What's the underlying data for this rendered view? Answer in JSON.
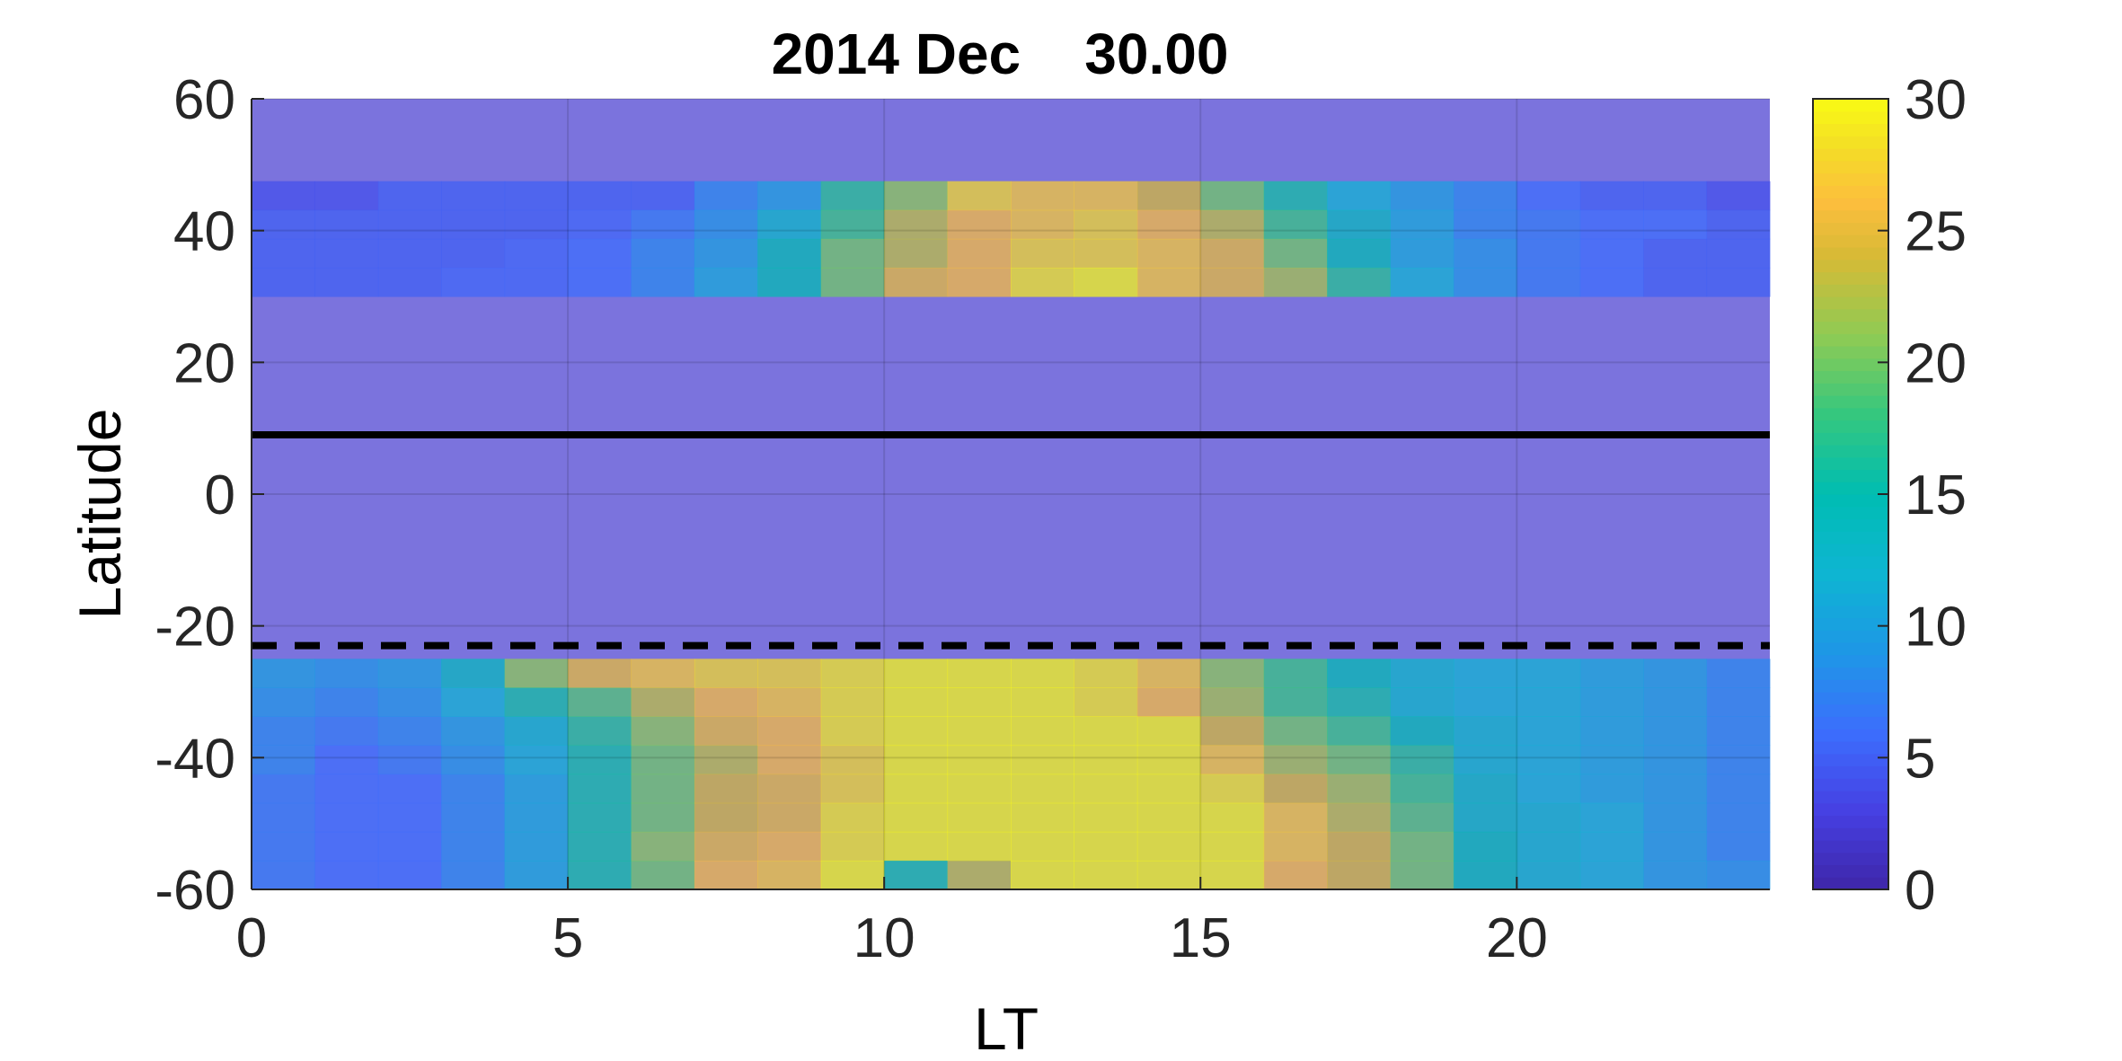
{
  "chart_data": {
    "type": "heatmap",
    "title": "2014 Dec    30.00",
    "xlabel": "LT",
    "ylabel": "Latitude",
    "xlim": [
      0,
      24
    ],
    "ylim": [
      -60,
      60
    ],
    "x_ticks": [
      0,
      5,
      10,
      15,
      20
    ],
    "y_ticks": [
      -60,
      -40,
      -20,
      0,
      20,
      40,
      60
    ],
    "colorbar": {
      "clim": [
        0,
        30
      ],
      "ticks": [
        0,
        5,
        10,
        15,
        20,
        25,
        30
      ],
      "colormap": "parula",
      "location": "right"
    },
    "grid": true,
    "x_bins": [
      0,
      1,
      2,
      3,
      4,
      5,
      6,
      7,
      8,
      9,
      10,
      11,
      12,
      13,
      14,
      15,
      16,
      17,
      18,
      19,
      20,
      21,
      22,
      23
    ],
    "background_value": 2,
    "bands": [
      {
        "lat_range": [
          30,
          47.5
        ],
        "columns": [
          [
            4,
            5,
            5,
            5
          ],
          [
            4,
            5,
            5,
            5
          ],
          [
            5,
            5,
            5,
            5
          ],
          [
            5,
            5,
            5,
            5.5
          ],
          [
            5,
            5,
            5.5,
            5.5
          ],
          [
            5,
            5.5,
            6,
            6
          ],
          [
            5,
            7,
            8,
            8
          ],
          [
            8,
            9,
            10,
            11
          ],
          [
            10,
            13,
            15,
            15
          ],
          [
            17,
            18,
            20,
            20
          ],
          [
            21,
            23,
            23,
            25
          ],
          [
            28,
            26,
            26,
            26
          ],
          [
            27,
            27,
            28,
            29
          ],
          [
            27,
            28,
            28,
            30
          ],
          [
            24,
            26,
            27,
            27
          ],
          [
            20,
            23,
            25,
            25
          ],
          [
            16,
            18,
            20,
            22
          ],
          [
            12,
            14,
            15,
            17
          ],
          [
            10,
            11,
            11,
            12
          ],
          [
            8,
            8,
            9,
            9
          ],
          [
            6,
            7,
            7,
            7
          ],
          [
            5,
            6,
            6,
            6
          ],
          [
            5,
            6,
            5,
            5
          ],
          [
            4,
            5,
            5,
            5
          ]
        ]
      },
      {
        "lat_range": [
          -60,
          -25
        ],
        "columns": [
          [
            10,
            9,
            8,
            8,
            7,
            7,
            7,
            7
          ],
          [
            9,
            8,
            7,
            6,
            6,
            6,
            6,
            6
          ],
          [
            10,
            9,
            8,
            7,
            6,
            6,
            6,
            6
          ],
          [
            14,
            12,
            10,
            9,
            8,
            8,
            8,
            8
          ],
          [
            21,
            16,
            13,
            12,
            11,
            11,
            11,
            11
          ],
          [
            25,
            19,
            17,
            16,
            16,
            16,
            16,
            16
          ],
          [
            27,
            23,
            21,
            20,
            20,
            20,
            21,
            20
          ],
          [
            28,
            26,
            25,
            23,
            24,
            24,
            25,
            26
          ],
          [
            28,
            27,
            26,
            26,
            25,
            25,
            26,
            27
          ],
          [
            29,
            29,
            29,
            28,
            28,
            29,
            29,
            30
          ],
          [
            30,
            30,
            30,
            30,
            30,
            30,
            30,
            16
          ],
          [
            30,
            30,
            30,
            30,
            30,
            30,
            30,
            23
          ],
          [
            30,
            30,
            30,
            30,
            30,
            30,
            30,
            30
          ],
          [
            29,
            29,
            30,
            30,
            30,
            30,
            30,
            30
          ],
          [
            27,
            26,
            30,
            30,
            30,
            30,
            30,
            30
          ],
          [
            21,
            22,
            24,
            27,
            29,
            30,
            30,
            30
          ],
          [
            18,
            18,
            20,
            22,
            24,
            27,
            27,
            26
          ],
          [
            15,
            16,
            18,
            20,
            22,
            23,
            24,
            24
          ],
          [
            13,
            13,
            15,
            17,
            18,
            19,
            20,
            20
          ],
          [
            12,
            12,
            13,
            13,
            14,
            14,
            15,
            15
          ],
          [
            12,
            12,
            12,
            12,
            12,
            13,
            13,
            13
          ],
          [
            11,
            11,
            11,
            11,
            11,
            12,
            12,
            12
          ],
          [
            10,
            10,
            10,
            10,
            10,
            10,
            10,
            10
          ],
          [
            8,
            8,
            8,
            8,
            8,
            8,
            8,
            9
          ]
        ]
      }
    ],
    "reference_lines": [
      {
        "lat": 9,
        "style": "solid"
      },
      {
        "lat": -23,
        "style": "dashed"
      }
    ]
  }
}
